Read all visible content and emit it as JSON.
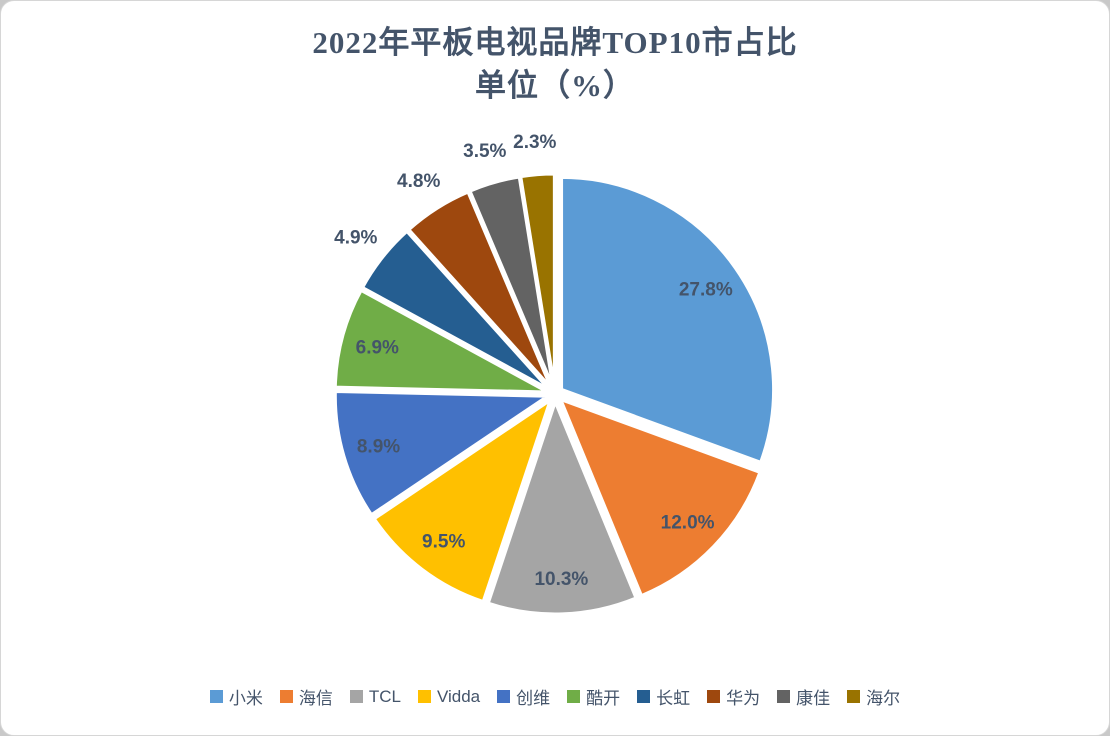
{
  "title": {
    "line1": "2022年平板电视品牌TOP10市占比",
    "line2": "单位（%）"
  },
  "chart_data": {
    "type": "pie",
    "title": "2022年平板电视品牌TOP10市占比",
    "subtitle": "单位（%）",
    "unit": "%",
    "categories": [
      "小米",
      "海信",
      "TCL",
      "Vidda",
      "创维",
      "酷开",
      "长虹",
      "华为",
      "康佳",
      "海尔"
    ],
    "values": [
      27.8,
      12.0,
      10.3,
      9.5,
      8.9,
      6.9,
      4.9,
      4.8,
      3.5,
      2.3
    ],
    "data_labels": [
      "27.8%",
      "12.0%",
      "10.3%",
      "9.5%",
      "8.9%",
      "6.9%",
      "4.9%",
      "4.8%",
      "3.5%",
      "2.3%"
    ],
    "colors": [
      "#5B9BD5",
      "#ED7D31",
      "#A5A5A5",
      "#FFC000",
      "#4472C4",
      "#70AD47",
      "#255E91",
      "#9E480E",
      "#636363",
      "#997300"
    ],
    "legend_position": "bottom",
    "start_angle_deg": -90,
    "direction": "clockwise",
    "exploded": true,
    "label_color": "#44546A",
    "title_color": "#44546A"
  }
}
